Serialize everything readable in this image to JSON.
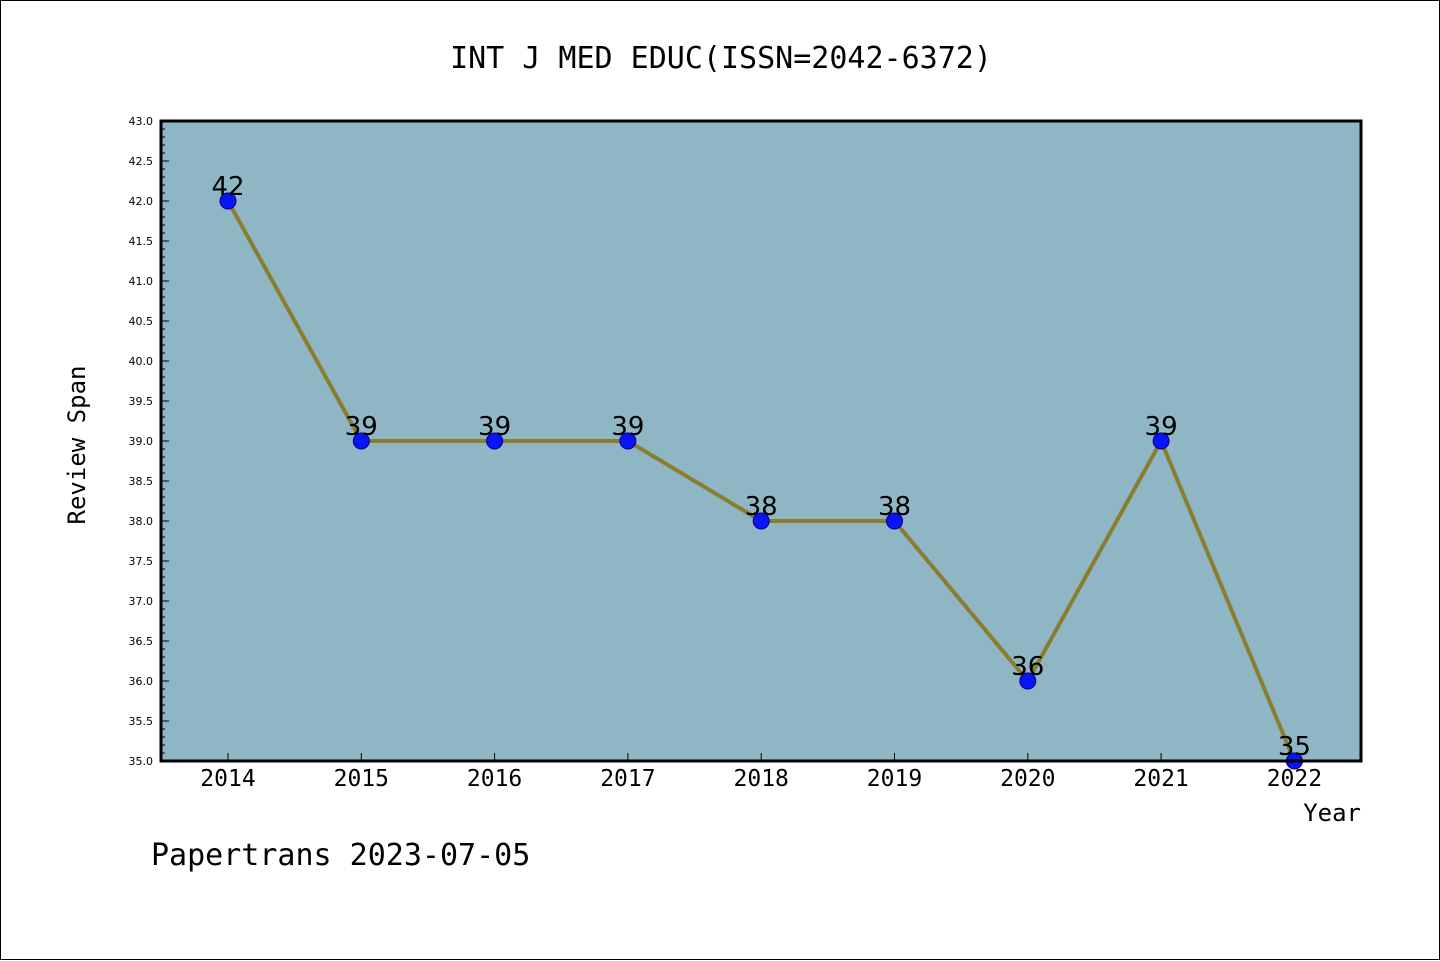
{
  "chart_data": {
    "type": "line",
    "title": "INT J MED EDUC(ISSN=2042-6372)",
    "xlabel": "Year",
    "ylabel": "Review Span",
    "categories": [
      "2014",
      "2015",
      "2016",
      "2017",
      "2018",
      "2019",
      "2020",
      "2021",
      "2022"
    ],
    "values": [
      42,
      39,
      39,
      39,
      38,
      38,
      36,
      39,
      35
    ],
    "data_labels": [
      "42",
      "39",
      "39",
      "39",
      "38",
      "38",
      "36",
      "39",
      "35"
    ],
    "ylim": [
      35.0,
      43.0
    ],
    "y_ticks": [
      "35.0",
      "35.5",
      "36.0",
      "36.5",
      "37.0",
      "37.5",
      "38.0",
      "38.5",
      "39.0",
      "39.5",
      "40.0",
      "40.5",
      "41.0",
      "41.5",
      "42.0",
      "42.5",
      "43.0"
    ],
    "grid": false,
    "legend": "none",
    "colors": {
      "plot_background": "#8fb6c4",
      "line": "#8b7d2e",
      "marker": "#0a14f5"
    }
  },
  "footer": {
    "credit": "Papertrans 2023-07-05"
  }
}
